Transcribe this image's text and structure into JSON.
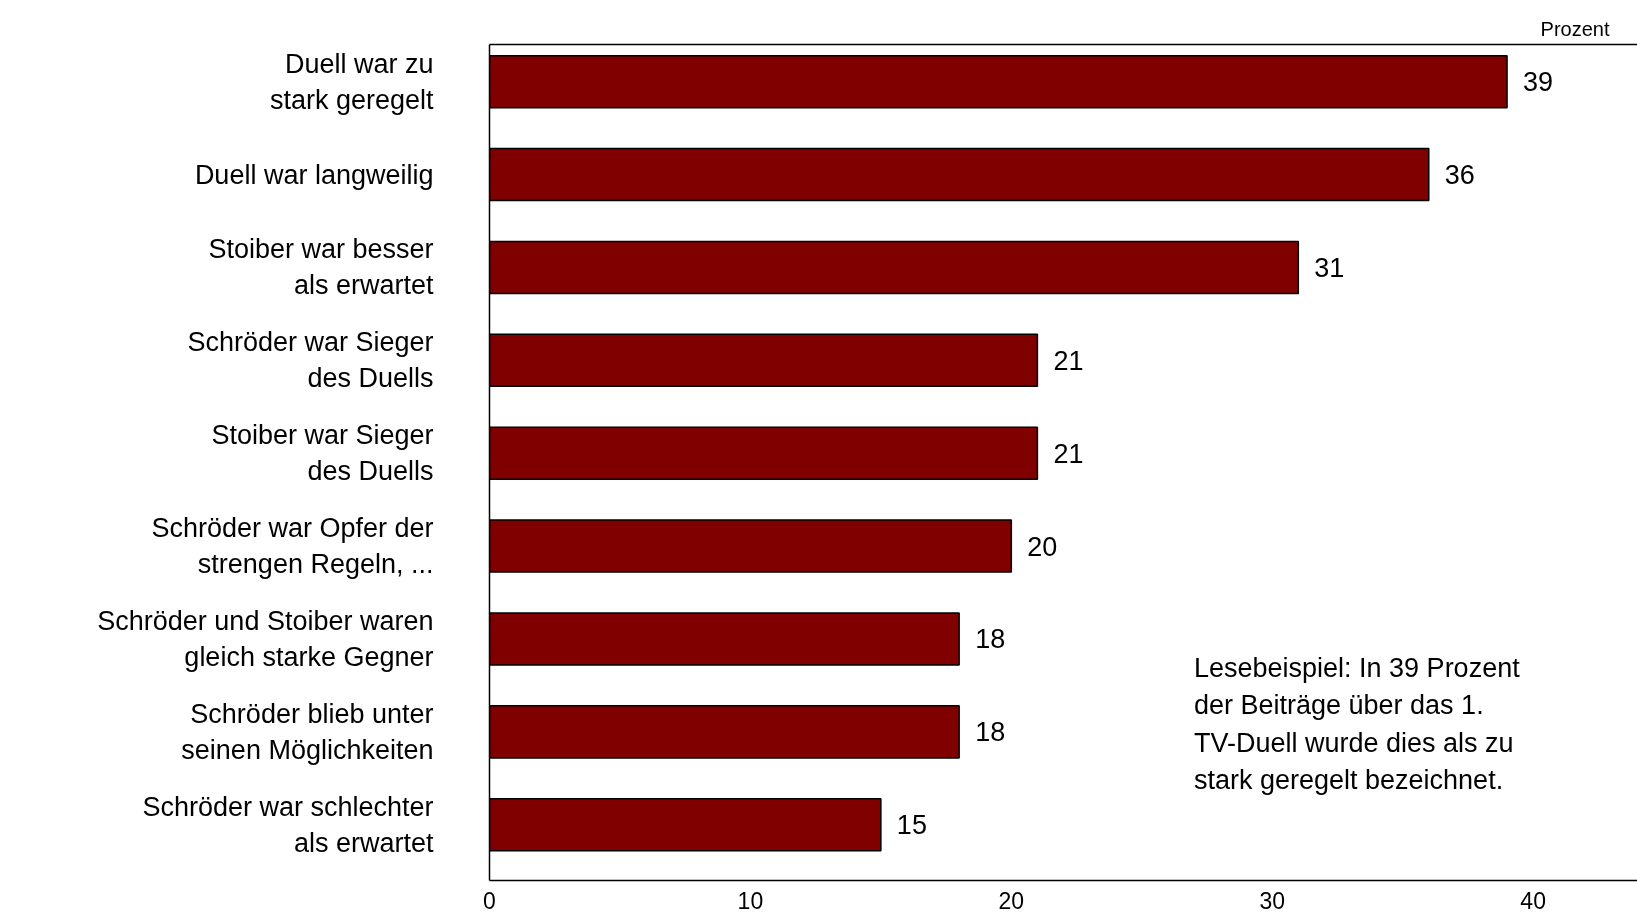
{
  "chart_data": {
    "type": "bar",
    "orientation": "horizontal",
    "xlabel": "Prozent",
    "categories": [
      "Duell war zu\nstark geregelt",
      "Duell war langweilig",
      "Stoiber war besser\nals erwartet",
      "Schröder war Sieger\ndes Duells",
      "Stoiber war Sieger\ndes Duells",
      "Schröder war Opfer der\nstrengen Regeln, ...",
      "Schröder und Stoiber waren\ngleich starke Gegner",
      "Schröder blieb unter\nseinen Möglichkeiten",
      "Schröder war schlechter\nals erwartet"
    ],
    "values": [
      39,
      36,
      31,
      21,
      21,
      20,
      18,
      18,
      15
    ],
    "color": "#800000",
    "xlim": [
      0,
      44
    ],
    "xticks": [
      0,
      10,
      20,
      30,
      40
    ],
    "data_labels": true,
    "grid": false,
    "annotations": [
      "Lesebeispiel:    In 39 Prozent\nder Beiträge über das 1.\nTV-Duell wurde dies als zu\nstark geregelt bezeichnet."
    ]
  }
}
